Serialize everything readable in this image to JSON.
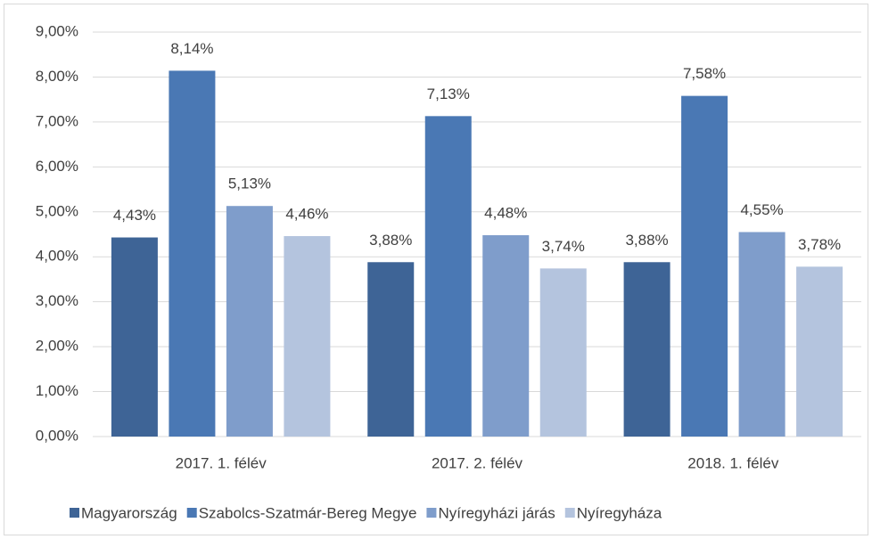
{
  "chart_data": {
    "type": "bar",
    "categories": [
      "2017. 1. félév",
      "2017. 2. félév",
      "2018. 1. félév"
    ],
    "series": [
      {
        "name": "Magyarország",
        "color": "#3e6496",
        "values": [
          4.43,
          3.88,
          3.88
        ],
        "value_labels": [
          "4,43%",
          "3,88%",
          "3,88%"
        ]
      },
      {
        "name": "Szabolcs-Szatmár-Bereg Megye",
        "color": "#4a78b4",
        "values": [
          8.14,
          7.13,
          7.58
        ],
        "value_labels": [
          "8,14%",
          "7,13%",
          "7,58%"
        ]
      },
      {
        "name": "Nyíregyházi járás",
        "color": "#7f9dcb",
        "values": [
          5.13,
          4.48,
          4.55
        ],
        "value_labels": [
          "5,13%",
          "4,48%",
          "4,55%"
        ]
      },
      {
        "name": "Nyíregyháza",
        "color": "#b4c4de",
        "values": [
          4.46,
          3.74,
          3.78
        ],
        "value_labels": [
          "4,46%",
          "3,74%",
          "3,78%"
        ]
      }
    ],
    "ylim": [
      0,
      9
    ],
    "yticks": [
      {
        "value": 0,
        "label": "0,00%"
      },
      {
        "value": 1,
        "label": "1,00%"
      },
      {
        "value": 2,
        "label": "2,00%"
      },
      {
        "value": 3,
        "label": "3,00%"
      },
      {
        "value": 4,
        "label": "4,00%"
      },
      {
        "value": 5,
        "label": "5,00%"
      },
      {
        "value": 6,
        "label": "6,00%"
      },
      {
        "value": 7,
        "label": "7,00%"
      },
      {
        "value": 8,
        "label": "8,00%"
      },
      {
        "value": 9,
        "label": "9,00%"
      }
    ],
    "grid": true,
    "legend": "bottom"
  }
}
